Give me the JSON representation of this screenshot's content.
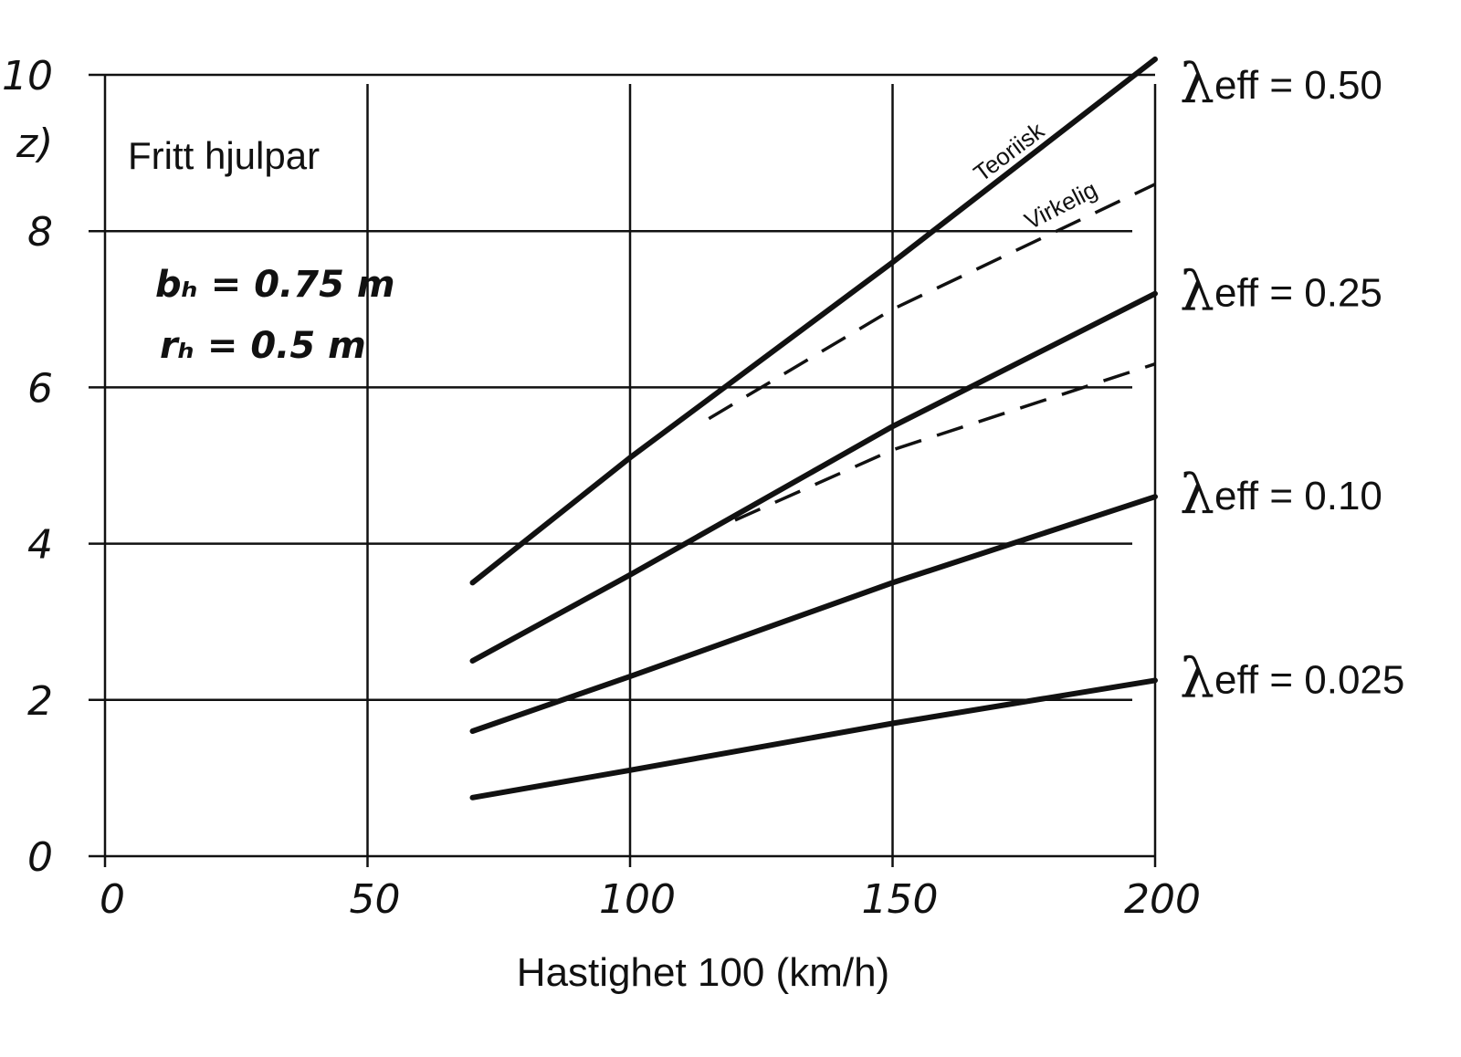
{
  "chart_data": {
    "type": "line",
    "title": "Fritt hjulpar",
    "xlabel": "Hastighet 100 (km/h)",
    "ylabel": "z)",
    "xlim": [
      0,
      200
    ],
    "ylim": [
      0,
      10
    ],
    "x_ticks": [
      "0",
      "50",
      "100",
      "150",
      "200"
    ],
    "y_ticks": [
      "0",
      "2",
      "4",
      "6",
      "8",
      "10"
    ],
    "parameters": [
      "bₕ = 0.75 m",
      "rₕ = 0.5 m"
    ],
    "curve_labels": {
      "theoretical": "Teoriisk",
      "actual": "Virkelig"
    },
    "series": [
      {
        "name": "λ eff = 0.50",
        "lambda": "λ",
        "label": "eff = 0.50",
        "style": "solid",
        "x": [
          70,
          100,
          150,
          200
        ],
        "y": [
          3.5,
          5.1,
          7.6,
          10.2
        ]
      },
      {
        "name": "λ eff = 0.25",
        "lambda": "λ",
        "label": "eff = 0.25",
        "style": "solid",
        "x": [
          70,
          100,
          150,
          200
        ],
        "y": [
          2.5,
          3.6,
          5.5,
          7.2
        ]
      },
      {
        "name": "λ eff = 0.10",
        "lambda": "λ",
        "label": "eff = 0.10",
        "style": "solid",
        "x": [
          70,
          100,
          150,
          200
        ],
        "y": [
          1.6,
          2.3,
          3.5,
          4.6
        ]
      },
      {
        "name": "λ eff = 0.025",
        "lambda": "λ",
        "label": "eff = 0.025",
        "style": "solid",
        "x": [
          70,
          100,
          150,
          200
        ],
        "y": [
          0.75,
          1.1,
          1.7,
          2.25
        ]
      },
      {
        "name": "Virkelig 0.50",
        "style": "dashed",
        "x": [
          115,
          150,
          200
        ],
        "y": [
          5.6,
          7.0,
          8.6
        ]
      },
      {
        "name": "Virkelig 0.25",
        "style": "dashed",
        "x": [
          120,
          150,
          200
        ],
        "y": [
          4.3,
          5.2,
          6.3
        ]
      }
    ]
  }
}
